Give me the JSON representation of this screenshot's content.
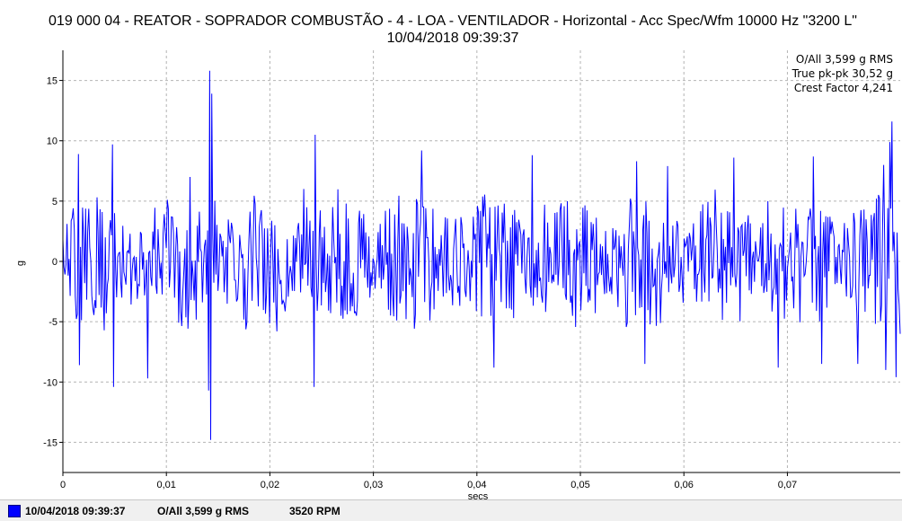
{
  "colors": {
    "trace": "#0000ff",
    "grid": "#b4b4b4"
  },
  "chart_data": {
    "type": "line",
    "title": "019 000 04 - REATOR - SOPRADOR COMBUSTÃO - 4 - LOA - VENTILADOR - Horizontal - Acc Spec/Wfm 10000 Hz \"3200 L\"",
    "subtitle": "10/04/2018 09:39:37",
    "xlabel": "secs",
    "ylabel": "g",
    "xlim": [
      0,
      0.0809
    ],
    "ylim": [
      -17.5,
      17.5
    ],
    "x_ticks": [
      0,
      0.01,
      0.02,
      0.03,
      0.04,
      0.05,
      0.06,
      0.07
    ],
    "x_tick_labels": [
      "0",
      "0,01",
      "0,02",
      "0,03",
      "0,04",
      "0,05",
      "0,06",
      "0,07"
    ],
    "y_ticks": [
      15,
      10,
      5,
      0,
      -5,
      -10,
      -15
    ],
    "y_tick_labels": [
      "15",
      "10",
      "5",
      "0",
      "-5",
      "-10",
      "-15"
    ],
    "grid": true,
    "stats": [
      "O/All 3,599 g RMS",
      "True pk-pk 30,52 g",
      "Crest Factor 4,241"
    ],
    "series": [
      {
        "x": [
          0,
          0.0015,
          0.0016,
          0.002,
          0.0048,
          0.0049,
          0.0057,
          0.0082,
          0.0123,
          0.0141,
          0.0142,
          0.0143,
          0.0144,
          0.0147,
          0.0207,
          0.0233,
          0.0243,
          0.0244,
          0.0251,
          0.0347,
          0.0386,
          0.0416,
          0.0453,
          0.047,
          0.0554,
          0.0562,
          0.0584,
          0.0648,
          0.0681,
          0.0691,
          0.0725,
          0.0733,
          0.0768,
          0.0793,
          0.0795,
          0.0799,
          0.0801,
          0.0805,
          0.0809
        ],
        "y": [
          1.8,
          8.9,
          -8.6,
          2.0,
          9.7,
          -10.4,
          -3.0,
          -9.7,
          7.0,
          -10.7,
          15.8,
          -14.8,
          13.9,
          5.0,
          -5.8,
          6.0,
          -10.4,
          10.5,
          2.0,
          9.2,
          3.0,
          -8.8,
          8.8,
          1.2,
          8.3,
          -8.5,
          7.9,
          8.6,
          5.0,
          -8.8,
          8.7,
          -8.5,
          -8.5,
          8.0,
          -9.0,
          9.9,
          11.6,
          -9.6,
          -6.0
        ]
      }
    ]
  },
  "footer": {
    "date": "10/04/2018 09:39:37",
    "overall": "O/All 3,599 g RMS",
    "rpm": "3520 RPM"
  }
}
